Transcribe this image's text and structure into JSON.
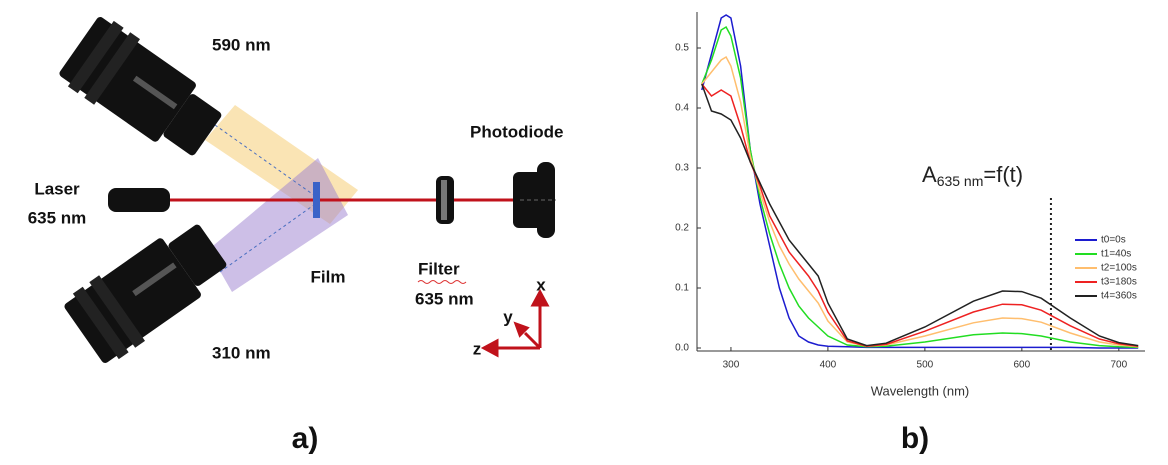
{
  "diagram": {
    "panel_label": "a)",
    "labels": {
      "camera_top": "590 nm",
      "laser": "Laser",
      "laser_wavelength": "635 nm",
      "film": "Film",
      "filter": "Filter",
      "filter_wavelength": "635 nm",
      "detector": "Photodiode",
      "camera_bottom": "310 nm",
      "axis_x": "x",
      "axis_y": "y",
      "axis_z": "z"
    }
  },
  "chart_data": {
    "type": "line",
    "panel_label": "b)",
    "x_label": "Wavelength (nm)",
    "annotation": {
      "base": "A",
      "subscript": "635 nm",
      "rest": "=f(t)",
      "x": 630
    },
    "x": [
      270,
      280,
      290,
      295,
      300,
      310,
      320,
      330,
      340,
      350,
      360,
      370,
      380,
      390,
      400,
      420,
      440,
      460,
      500,
      550,
      580,
      600,
      620,
      650,
      680,
      700,
      720
    ],
    "series": [
      {
        "name": "t0=0s",
        "color": "#1c1ccf",
        "values": [
          0.43,
          0.49,
          0.55,
          0.555,
          0.55,
          0.47,
          0.33,
          0.24,
          0.17,
          0.1,
          0.05,
          0.02,
          0.01,
          0.005,
          0.003,
          0.002,
          0.001,
          0.001,
          0.001,
          0.001,
          0.001,
          0.001,
          0.001,
          0.001,
          0,
          0,
          0
        ]
      },
      {
        "name": "t1=40s",
        "color": "#22dd22",
        "values": [
          0.44,
          0.48,
          0.53,
          0.535,
          0.52,
          0.45,
          0.33,
          0.25,
          0.19,
          0.14,
          0.1,
          0.07,
          0.05,
          0.035,
          0.02,
          0.005,
          0.002,
          0.003,
          0.01,
          0.022,
          0.025,
          0.024,
          0.02,
          0.01,
          0.004,
          0.002,
          0.001
        ]
      },
      {
        "name": "t2=100s",
        "color": "#ffbe6e",
        "values": [
          0.44,
          0.46,
          0.48,
          0.485,
          0.47,
          0.41,
          0.32,
          0.26,
          0.21,
          0.17,
          0.14,
          0.115,
          0.095,
          0.075,
          0.045,
          0.01,
          0.003,
          0.005,
          0.02,
          0.042,
          0.05,
          0.049,
          0.043,
          0.025,
          0.01,
          0.005,
          0.002
        ]
      },
      {
        "name": "t3=180s",
        "color": "#ee2222",
        "values": [
          0.44,
          0.42,
          0.43,
          0.425,
          0.42,
          0.37,
          0.31,
          0.27,
          0.22,
          0.19,
          0.16,
          0.14,
          0.12,
          0.095,
          0.06,
          0.012,
          0.003,
          0.006,
          0.028,
          0.06,
          0.073,
          0.072,
          0.063,
          0.037,
          0.015,
          0.007,
          0.003
        ]
      },
      {
        "name": "t4=360s",
        "color": "#222222",
        "values": [
          0.44,
          0.395,
          0.39,
          0.385,
          0.38,
          0.35,
          0.31,
          0.275,
          0.24,
          0.21,
          0.18,
          0.16,
          0.14,
          0.12,
          0.075,
          0.015,
          0.004,
          0.008,
          0.035,
          0.078,
          0.095,
          0.094,
          0.083,
          0.05,
          0.02,
          0.009,
          0.004
        ]
      }
    ],
    "xlim": [
      265,
      727
    ],
    "ylim": [
      -0.005,
      0.56
    ],
    "xticks": [
      300,
      400,
      500,
      600,
      700
    ],
    "yticks": [
      {
        "value": 0,
        "label": "0.0"
      },
      0.1,
      0.2,
      0.3,
      0.4,
      0.5
    ],
    "legend": "right"
  }
}
